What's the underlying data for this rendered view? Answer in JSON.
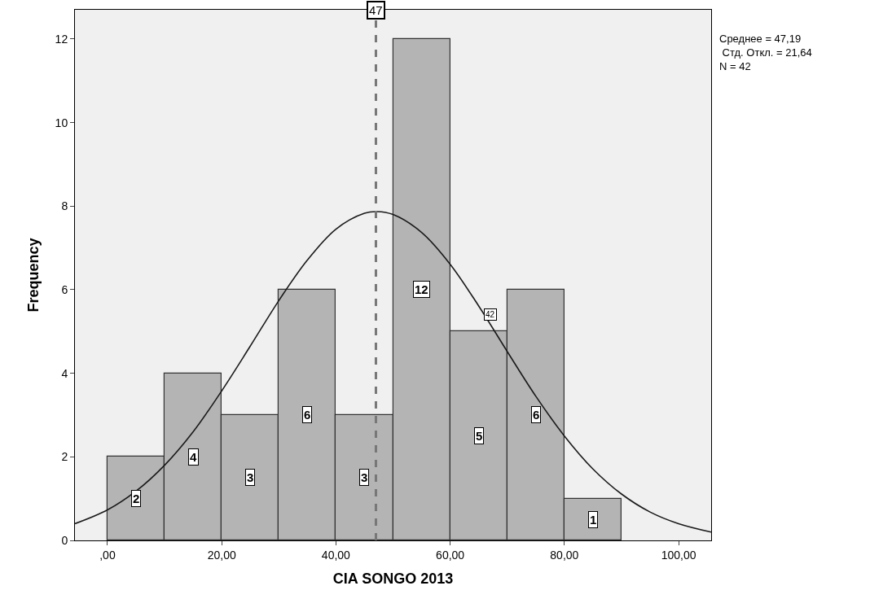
{
  "chart_data": {
    "type": "histogram",
    "xlabel": "CIA SONGO 2013",
    "ylabel": "Frequency",
    "bins": [
      0,
      10,
      20,
      30,
      40,
      50,
      60,
      70,
      80,
      90
    ],
    "values": [
      2,
      4,
      3,
      6,
      3,
      12,
      5,
      6,
      1
    ],
    "color": "#b4b4b4",
    "value_labels": [
      "2",
      "4",
      "3",
      "6",
      "3",
      "12",
      "5",
      "6",
      "1"
    ],
    "series": [
      {
        "type": "line",
        "color": "#1a1a1a",
        "x": [
          -5.7,
          0,
          5,
          10,
          15,
          20,
          25,
          30,
          35,
          40,
          45,
          47.19,
          50,
          55,
          60,
          65,
          70,
          75,
          80,
          85,
          90,
          95,
          100,
          105.7
        ],
        "values": [
          0.4,
          0.73,
          1.18,
          1.8,
          2.6,
          3.58,
          4.65,
          5.74,
          6.71,
          7.45,
          7.83,
          7.87,
          7.8,
          7.37,
          6.61,
          5.61,
          4.52,
          3.45,
          2.5,
          1.71,
          1.11,
          0.68,
          0.4,
          0.2
        ]
      }
    ],
    "ref_lines": [
      {
        "axis": "x",
        "value": 47,
        "label": "47",
        "color": "#777777",
        "line_style": "dashed"
      }
    ],
    "annotations": [
      {
        "text": "42",
        "x": 67,
        "y": 5.4
      },
      "Среднее = 47,19",
      " Стд. Откл. = 21,64",
      "N = 42"
    ],
    "xlim": [
      -5.7,
      105.7
    ],
    "ylim": [
      0,
      12.7
    ],
    "xticks": [
      {
        "value": 0,
        "label": ",00"
      },
      {
        "value": 20,
        "label": "20,00"
      },
      {
        "value": 40,
        "label": "40,00"
      },
      {
        "value": 60,
        "label": "60,00"
      },
      {
        "value": 80,
        "label": "80,00"
      },
      {
        "value": 100,
        "label": "100,00"
      }
    ],
    "yticks": [
      0,
      2,
      4,
      6,
      8,
      10,
      12
    ],
    "grid": false
  }
}
